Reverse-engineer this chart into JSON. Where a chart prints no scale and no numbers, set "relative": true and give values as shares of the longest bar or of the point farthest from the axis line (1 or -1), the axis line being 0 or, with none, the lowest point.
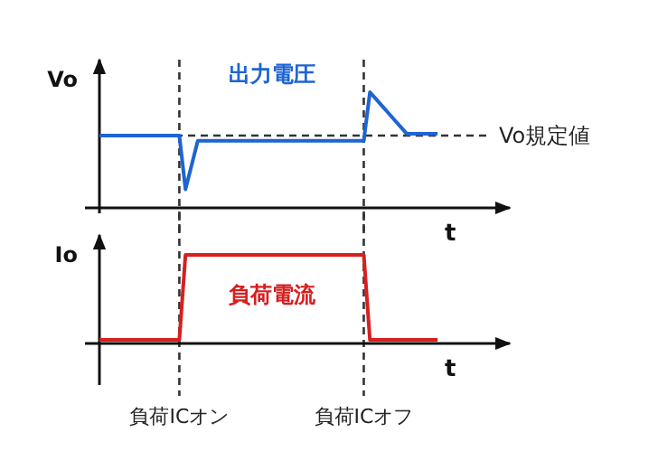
{
  "chart_data": [
    {
      "type": "line",
      "relative": true,
      "ylabel": "Vo",
      "xlabel": "t",
      "tick_labels": false,
      "grid": false,
      "legend": false,
      "marker": "none",
      "line_style": "solid",
      "categories": [
        null,
        null,
        null,
        null,
        null,
        null,
        null,
        null,
        null,
        null,
        null,
        null,
        null,
        "負荷ICオン",
        null,
        null,
        null,
        null,
        null,
        null,
        null,
        null,
        null,
        null,
        null,
        null,
        null,
        null,
        null,
        null,
        null,
        null,
        null,
        null,
        null,
        null,
        null,
        null,
        null,
        null,
        null,
        null,
        null,
        "負荷ICオフ",
        null,
        null,
        null,
        null,
        null,
        null,
        null,
        null,
        null,
        null,
        null,
        null
      ],
      "series": [
        {
          "name": "出力電圧",
          "color": "#1e64d2",
          "values": [
            0.625,
            0.625,
            0.625,
            0.625,
            0.625,
            0.625,
            0.625,
            0.625,
            0.625,
            0.625,
            0.625,
            0.625,
            0.625,
            0.625,
            0.16,
            0.37,
            0.58,
            0.58,
            0.58,
            0.58,
            0.58,
            0.58,
            0.58,
            0.58,
            0.58,
            0.58,
            0.58,
            0.58,
            0.58,
            0.58,
            0.58,
            0.58,
            0.58,
            0.58,
            0.58,
            0.58,
            0.58,
            0.58,
            0.58,
            0.58,
            0.58,
            0.58,
            0.58,
            0.58,
            1,
            0.94,
            0.88,
            0.82,
            0.76,
            0.7,
            0.64,
            0.64,
            0.64,
            0.64,
            0.64,
            0.64
          ]
        }
      ],
      "ref_lines": [
        {
          "axis": "y",
          "value": 0.625,
          "label": "Vo規定値",
          "color": "#333333",
          "line_style": "dashed"
        },
        {
          "axis": "x",
          "value": "負荷ICオン",
          "color": "#333333",
          "line_style": "dashed"
        },
        {
          "axis": "x",
          "value": "負荷ICオフ",
          "color": "#333333",
          "line_style": "dashed"
        }
      ]
    },
    {
      "type": "line",
      "relative": true,
      "ylabel": "Io",
      "xlabel": "t",
      "grid": false,
      "legend": false,
      "marker": "none",
      "line_style": "solid",
      "categories": [
        null,
        null,
        null,
        null,
        null,
        null,
        null,
        null,
        null,
        null,
        null,
        null,
        null,
        "負荷ICオン",
        null,
        null,
        null,
        null,
        null,
        null,
        null,
        null,
        null,
        null,
        null,
        null,
        null,
        null,
        null,
        null,
        null,
        null,
        null,
        null,
        null,
        null,
        null,
        null,
        null,
        null,
        null,
        null,
        null,
        "負荷ICオフ",
        null,
        null,
        null,
        null,
        null,
        null,
        null,
        null,
        null,
        null,
        null,
        null
      ],
      "series": [
        {
          "name": "負荷電流",
          "color": "#d62020",
          "values": [
            0.04,
            0.04,
            0.04,
            0.04,
            0.04,
            0.04,
            0.04,
            0.04,
            0.04,
            0.04,
            0.04,
            0.04,
            0.04,
            0.04,
            1,
            1,
            1,
            1,
            1,
            1,
            1,
            1,
            1,
            1,
            1,
            1,
            1,
            1,
            1,
            1,
            1,
            1,
            1,
            1,
            1,
            1,
            1,
            1,
            1,
            1,
            1,
            1,
            1,
            1,
            0.04,
            0.04,
            0.04,
            0.04,
            0.04,
            0.04,
            0.04,
            0.04,
            0.04,
            0.04,
            0.04,
            0.04
          ]
        }
      ],
      "ref_lines": [
        {
          "axis": "x",
          "value": "負荷ICオン",
          "color": "#333333",
          "line_style": "dashed"
        },
        {
          "axis": "x",
          "value": "負荷ICオフ",
          "color": "#333333",
          "line_style": "dashed"
        }
      ]
    }
  ]
}
